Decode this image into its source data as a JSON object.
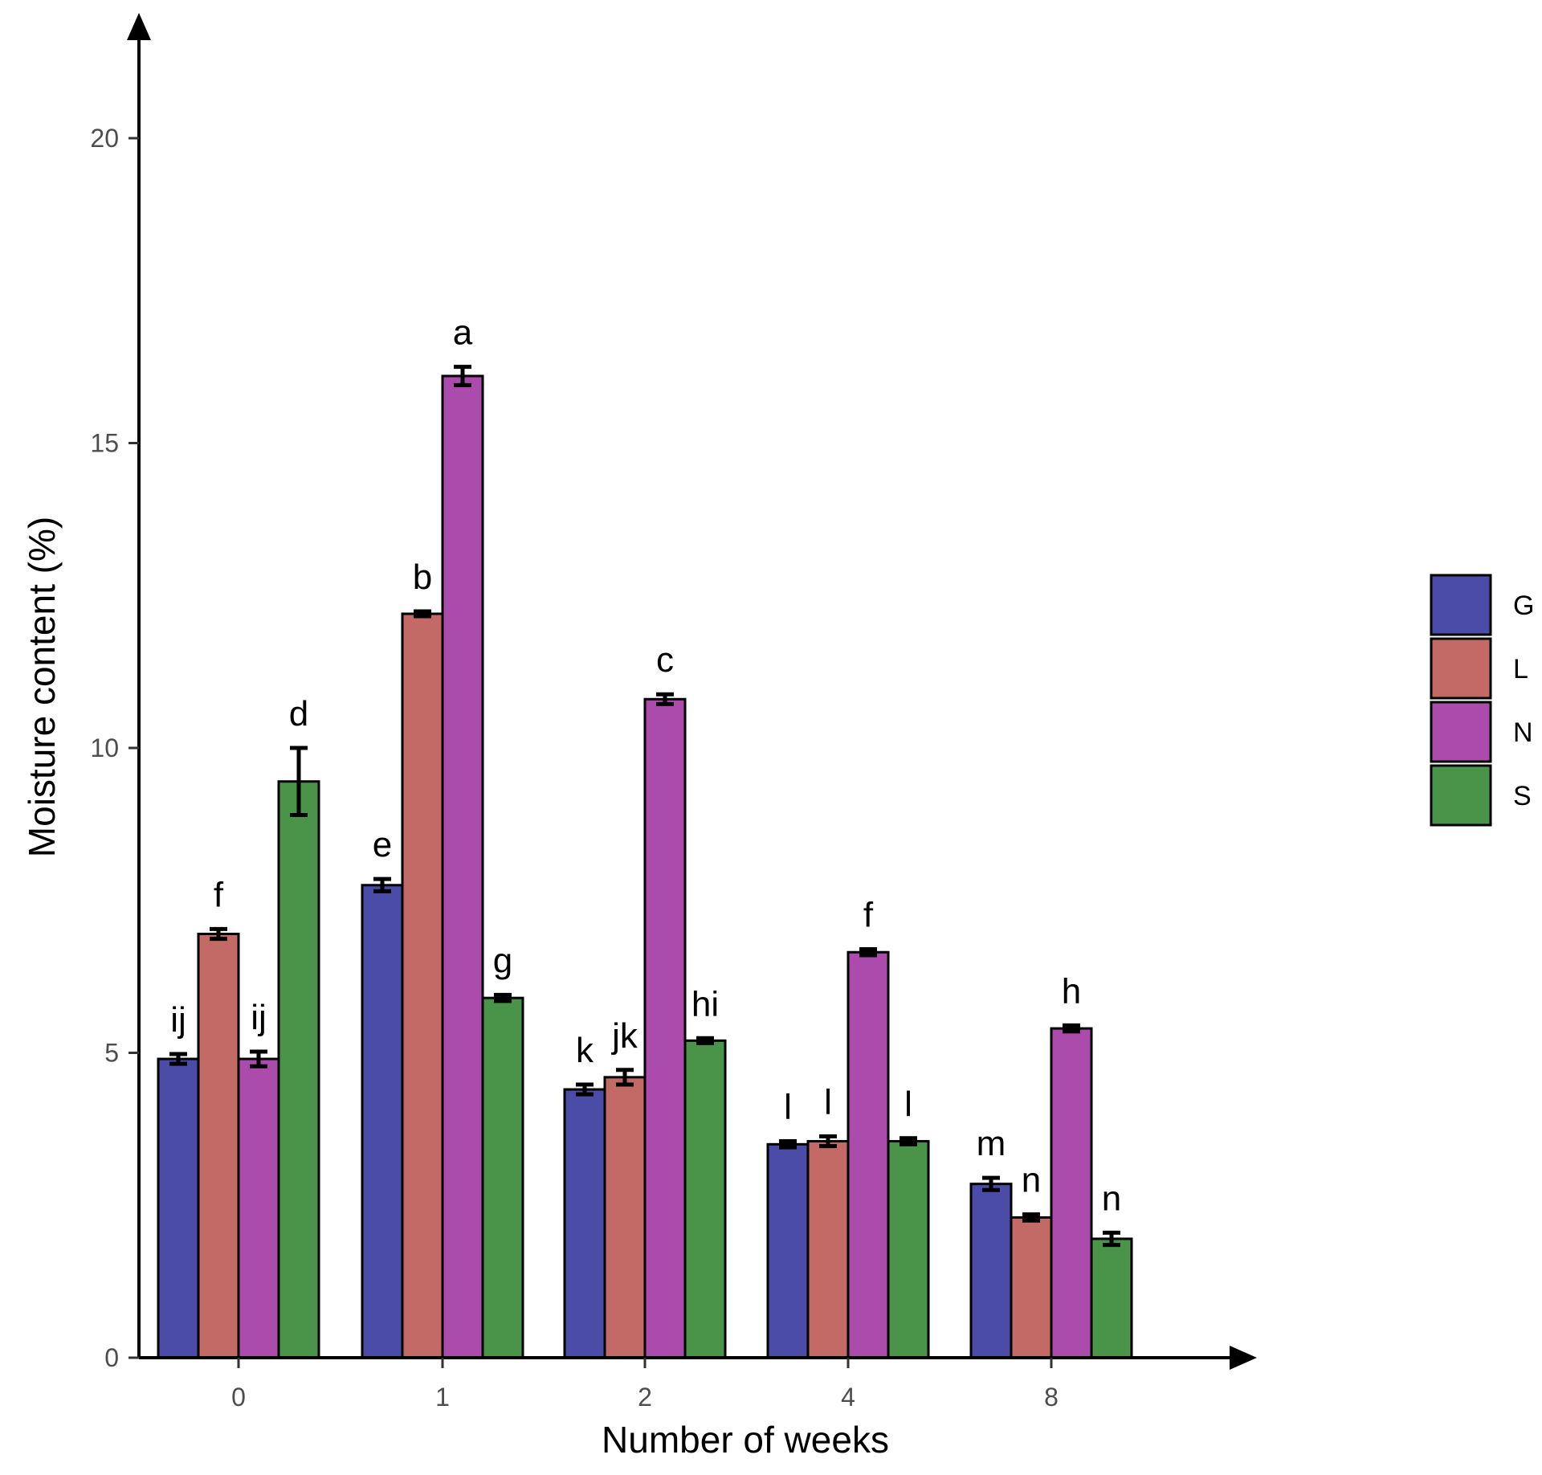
{
  "chart_data": {
    "type": "bar",
    "title": "",
    "xlabel": "Number of weeks",
    "ylabel": "Moisture content (%)",
    "ylim": [
      0,
      22
    ],
    "yticks": [
      0,
      5,
      10,
      15,
      20
    ],
    "grid": false,
    "legend_position": "right",
    "categories": [
      "0",
      "1",
      "2",
      "4",
      "8"
    ],
    "series": [
      {
        "name": "G",
        "color": "#4b4ba8",
        "values": [
          4.9,
          7.75,
          4.4,
          3.5,
          2.85
        ],
        "errors": [
          0.08,
          0.1,
          0.08,
          0.05,
          0.1
        ],
        "labels": [
          "ij",
          "e",
          "k",
          "l",
          "m"
        ]
      },
      {
        "name": "L",
        "color": "#c46a66",
        "values": [
          6.95,
          12.2,
          4.6,
          3.55,
          2.3
        ],
        "errors": [
          0.08,
          0.04,
          0.12,
          0.08,
          0.05
        ],
        "labels": [
          "f",
          "b",
          "jk",
          "l",
          "n"
        ]
      },
      {
        "name": "N",
        "color": "#ab4bab",
        "values": [
          4.9,
          16.1,
          10.8,
          6.65,
          5.4
        ],
        "errors": [
          0.12,
          0.15,
          0.08,
          0.05,
          0.05
        ],
        "labels": [
          "ij",
          "a",
          "c",
          "f",
          "h"
        ]
      },
      {
        "name": "S",
        "color": "#4a944a",
        "values": [
          9.45,
          5.9,
          5.2,
          3.55,
          1.95
        ],
        "errors": [
          0.55,
          0.05,
          0.04,
          0.05,
          0.1
        ],
        "labels": [
          "d",
          "g",
          "hi",
          "l",
          "n"
        ]
      }
    ]
  }
}
